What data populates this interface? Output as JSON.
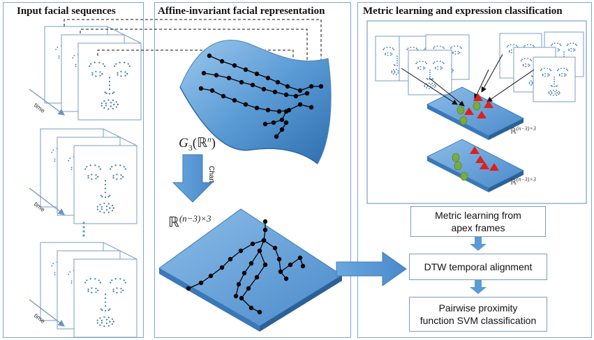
{
  "panels": {
    "left": {
      "title": "Input facial sequences"
    },
    "middle": {
      "title": "Affine-invariant facial representation"
    },
    "right": {
      "title": "Metric learning and expression classification"
    }
  },
  "labels": {
    "time": "time",
    "chart": "Chart",
    "grassmann_base": "G",
    "grassmann_sub": "3",
    "grassmann_arg": "(ℝ",
    "grassmann_arg_sup": "n",
    "grassmann_close": ")",
    "euclid_base": "ℝ",
    "euclid_sup": "(n−3)×3",
    "euclid_small_1": "ℝ",
    "euclid_small_1_sup": "(n−3)×3",
    "euclid_small_2": "ℝ",
    "euclid_small_2_sup": "(n−3)×3"
  },
  "boxes": {
    "metric_learning": {
      "line1": "Metric learning from",
      "line2": "apex frames"
    },
    "dtw": {
      "line1": "DTW temporal alignment"
    },
    "svm": {
      "line1": "Pairwise proximity",
      "line2": "function SVM classification"
    }
  },
  "colors": {
    "panel_border": "#7fa7cf",
    "surface_blue": "#5b9bd5",
    "arrow_blue": "#5b9bd5",
    "triangle_red": "#e0201b",
    "circle_green": "#7aab3d",
    "point_black": "#000000",
    "landmark_blue": "#3b78b8"
  }
}
